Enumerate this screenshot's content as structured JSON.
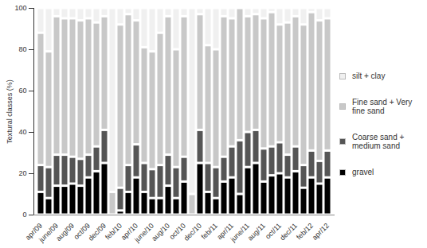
{
  "chart_data": {
    "type": "bar",
    "stacked": true,
    "legend": "right",
    "y_label": "Textural classes (%)",
    "ylim": [
      0,
      100
    ],
    "yticks": [
      0,
      20,
      40,
      60,
      80,
      100
    ],
    "categories": [
      "apr/09",
      null,
      "june/09",
      null,
      "aug/09",
      null,
      "oct/09",
      null,
      "dec/09",
      null,
      "feb/10",
      null,
      "apr/10",
      null,
      "june/10",
      null,
      "aug/10",
      null,
      "oct/10",
      null,
      "dec/10",
      null,
      "feb/11",
      null,
      "apr/11",
      null,
      "june/11",
      null,
      "aug/11",
      null,
      "oct/11",
      null,
      "dec/11",
      null,
      "feb/12",
      null,
      "apr/12"
    ],
    "series": [
      {
        "name": "gravel",
        "color": "#000000",
        "values": [
          11,
          8,
          14,
          14,
          15,
          14,
          18,
          21,
          25,
          0,
          2,
          11,
          18,
          11,
          8,
          8,
          14,
          8,
          16,
          0,
          25,
          11,
          8,
          16,
          18,
          10,
          23,
          25,
          16,
          19,
          20,
          18,
          21,
          13,
          18,
          15,
          18
        ]
      },
      {
        "name": "Coarse sand + medium sand",
        "color": "#555555",
        "values": [
          13,
          15,
          15,
          15,
          13,
          13,
          11,
          12,
          16,
          0,
          11,
          13,
          16,
          14,
          14,
          16,
          15,
          15,
          12,
          0,
          16,
          14,
          15,
          12,
          15,
          26,
          17,
          16,
          16,
          14,
          15,
          11,
          12,
          11,
          13,
          11,
          13
        ]
      },
      {
        "name": "Fine sand + Very fine sand",
        "color": "#c8c8c8",
        "values": [
          64,
          56,
          67,
          66,
          67,
          67,
          66,
          60,
          55,
          11,
          79,
          73,
          60,
          56,
          57,
          64,
          67,
          57,
          68,
          10,
          56,
          57,
          57,
          68,
          62,
          64,
          56,
          56,
          63,
          65,
          57,
          64,
          63,
          68,
          67,
          68,
          64
        ]
      },
      {
        "name": "silt + clay",
        "color": "#f0f0f0",
        "values": [
          12,
          21,
          4,
          5,
          5,
          6,
          5,
          7,
          4,
          89,
          8,
          3,
          6,
          19,
          21,
          12,
          4,
          20,
          4,
          90,
          3,
          18,
          20,
          4,
          5,
          0,
          4,
          3,
          5,
          2,
          8,
          7,
          4,
          8,
          2,
          6,
          5
        ]
      }
    ]
  }
}
